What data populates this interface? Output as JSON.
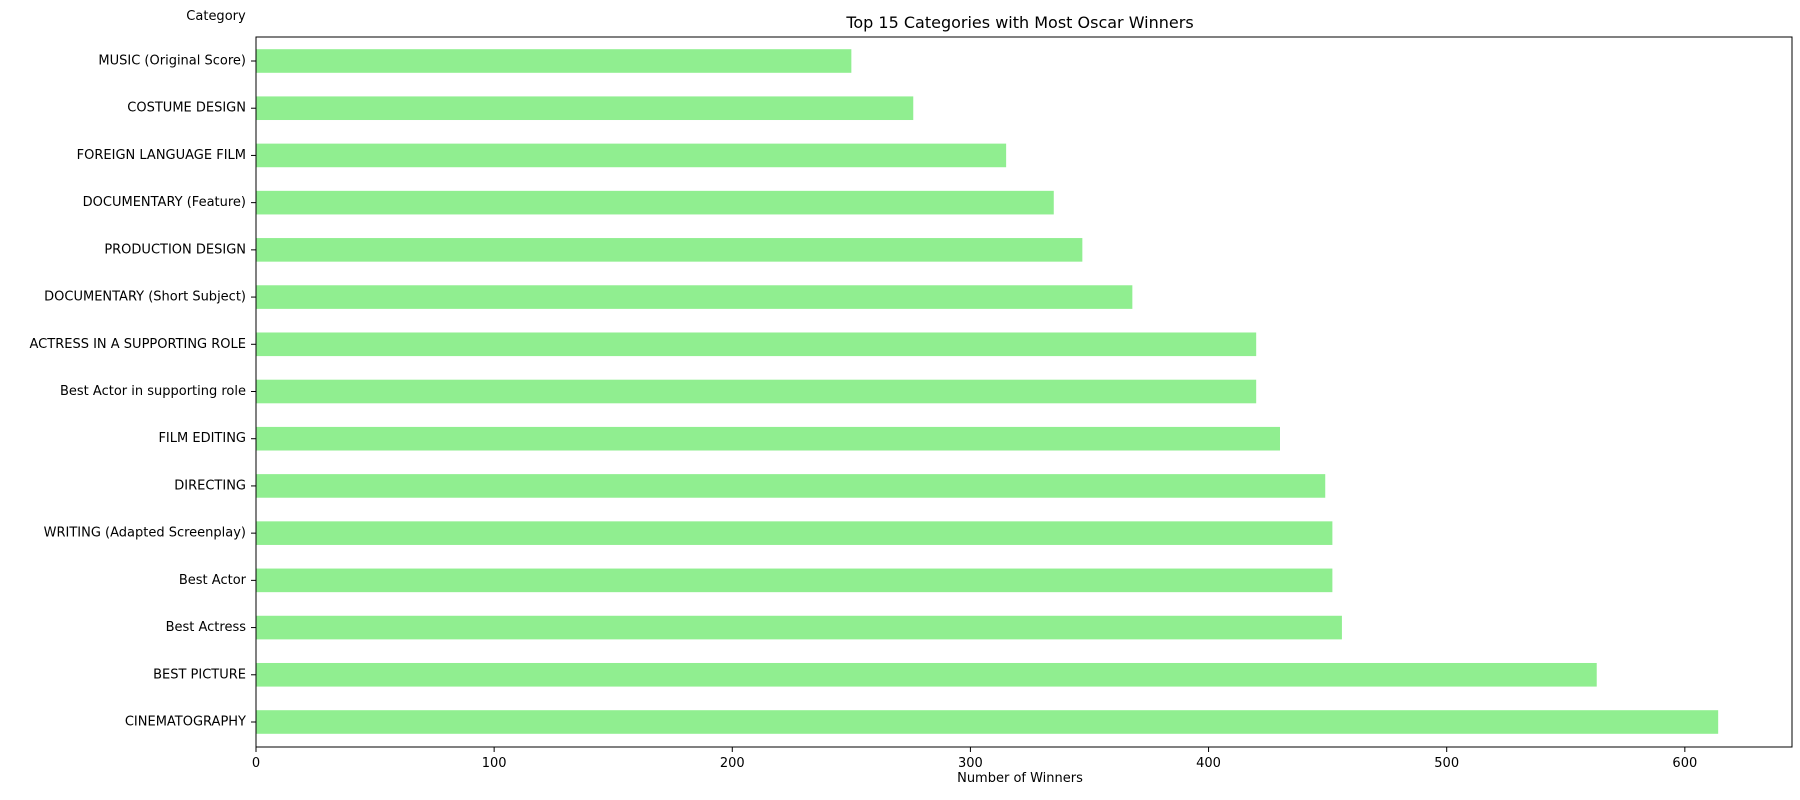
{
  "chart_data": {
    "type": "bar",
    "orientation": "horizontal",
    "title": "Top 15 Categories with Most Oscar Winners",
    "xlabel": "Number of Winners",
    "ylabel": "Category",
    "categories": [
      "CINEMATOGRAPHY",
      "BEST PICTURE",
      "Best Actress",
      "Best Actor",
      "WRITING (Adapted Screenplay)",
      "DIRECTING",
      "FILM EDITING",
      "Best Actor in supporting role",
      "ACTRESS IN A SUPPORTING ROLE",
      "DOCUMENTARY (Short Subject)",
      "PRODUCTION DESIGN",
      "DOCUMENTARY (Feature)",
      "FOREIGN LANGUAGE FILM",
      "COSTUME DESIGN",
      "MUSIC (Original Score)"
    ],
    "values": [
      614,
      563,
      456,
      452,
      452,
      449,
      430,
      420,
      420,
      368,
      347,
      335,
      315,
      276,
      250
    ],
    "xlim": [
      0,
      645
    ],
    "xticks": [
      0,
      100,
      200,
      300,
      400,
      500,
      600
    ],
    "grid": false,
    "bar_color": "#90ee90"
  }
}
